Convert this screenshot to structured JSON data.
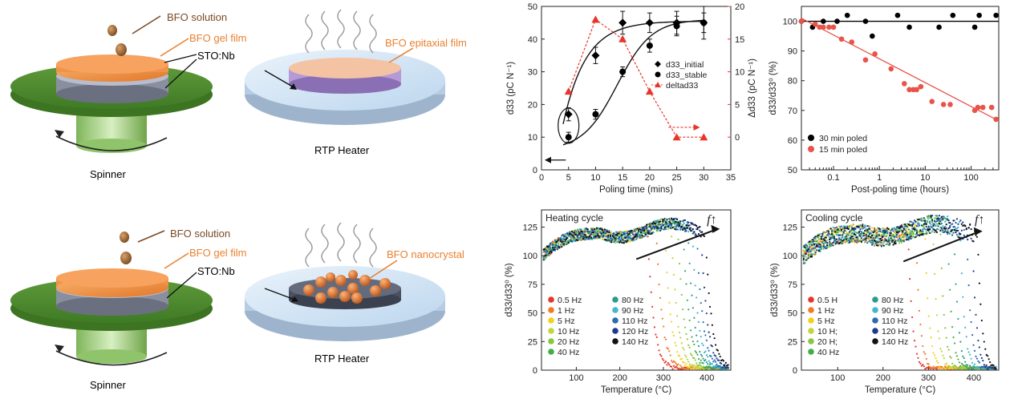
{
  "schematic": {
    "top": {
      "solution_label": "BFO solution",
      "gel_label": "BFO gel film",
      "substrate_label": "STO:Nb",
      "product_label": "BFO epitaxial film",
      "spinner_label": "Spinner",
      "heater_label": "RTP Heater"
    },
    "bottom": {
      "solution_label": "BFO solution",
      "gel_label": "BFO gel film",
      "substrate_label": "STO:Nb",
      "product_label": "BFO nanocrystal",
      "spinner_label": "Spinner",
      "heater_label": "RTP Heater"
    }
  },
  "chart_data": [
    {
      "type": "line",
      "xlabel": "Poling time (mins)",
      "ylabel": "d33 (pC N⁻¹)",
      "ylabel_right": "Δd33 (pC N⁻¹)",
      "xlim": [
        0,
        35
      ],
      "ylim": [
        0,
        50
      ],
      "ylim_right": [
        -5,
        20
      ],
      "xticks": [
        "0",
        "5",
        "10",
        "15",
        "20",
        "25",
        "30",
        "35"
      ],
      "yticks": [
        "0",
        "10",
        "20",
        "30",
        "40",
        "50"
      ],
      "yticks_right": [
        "0",
        "5",
        "10",
        "15",
        "20"
      ],
      "series": [
        {
          "name": "d33_initial",
          "marker": "diamond",
          "color": "#000000",
          "axis": "left",
          "x": [
            5,
            10,
            15,
            20,
            25,
            30
          ],
          "y": [
            17,
            35,
            45,
            45,
            45,
            45
          ],
          "err": [
            2,
            2.5,
            3.5,
            3,
            3.5,
            5
          ]
        },
        {
          "name": "d33_stable",
          "marker": "circle",
          "color": "#000000",
          "axis": "left",
          "x": [
            5,
            10,
            15,
            20,
            25,
            30
          ],
          "y": [
            10,
            17,
            30,
            38,
            44,
            45
          ],
          "err": [
            1.5,
            1.5,
            1.5,
            2,
            3,
            3
          ]
        },
        {
          "name": "deltad33",
          "marker": "triangle",
          "color": "#e8352b",
          "axis": "right",
          "x": [
            5,
            10,
            15,
            20,
            25,
            30
          ],
          "y": [
            7,
            18,
            15,
            7,
            0,
            0
          ]
        }
      ]
    },
    {
      "type": "scatter",
      "xlabel": "Post-poling time (hours)",
      "ylabel": "d33/d33⁰ (%)",
      "xscale": "log",
      "xlim": [
        0.02,
        400
      ],
      "ylim": [
        50,
        105
      ],
      "xticks": [
        "0.1",
        "1",
        "10",
        "100"
      ],
      "yticks": [
        "50",
        "60",
        "70",
        "80",
        "90",
        "100"
      ],
      "legend_position": "bottom-left",
      "series": [
        {
          "name": "30 min poled",
          "color": "#000000",
          "x": [
            0.02,
            0.035,
            0.06,
            0.12,
            0.2,
            0.5,
            0.7,
            2.5,
            4.5,
            20,
            40,
            120,
            150,
            350
          ],
          "y": [
            100,
            98,
            100,
            100,
            102,
            100,
            95,
            102,
            98,
            98,
            102,
            98,
            102,
            102
          ]
        },
        {
          "name": "15 min poled",
          "color": "#e8534a",
          "x": [
            0.02,
            0.04,
            0.05,
            0.06,
            0.08,
            0.1,
            0.15,
            0.25,
            0.5,
            0.8,
            1.8,
            3.5,
            4.5,
            5.5,
            6.5,
            8,
            14,
            25,
            35,
            120,
            140,
            180,
            280,
            350
          ],
          "y": [
            100,
            99,
            98,
            98,
            98,
            98,
            94,
            93,
            87,
            89,
            84,
            79,
            77,
            77,
            77,
            78,
            73,
            72,
            72,
            70,
            71,
            71,
            71,
            67
          ]
        }
      ],
      "fits": [
        {
          "series": "30 min poled",
          "color": "#000000"
        },
        {
          "series": "15 min poled",
          "color": "#e8534a"
        }
      ]
    },
    {
      "type": "scatter",
      "title": "Heating cycle",
      "xlabel": "Temperature (°C)",
      "ylabel": "d33/d33⁰ (%)",
      "xlim": [
        20,
        455
      ],
      "ylim": [
        0,
        140
      ],
      "xticks": [
        "100",
        "200",
        "300",
        "400"
      ],
      "yticks": [
        "0",
        "25",
        "50",
        "75",
        "100",
        "125"
      ],
      "annotation": "f↑",
      "series": [
        {
          "name": "0.5 Hz",
          "color": "#e8352b",
          "drop_T": 263
        },
        {
          "name": "1 Hz",
          "color": "#f07b22",
          "drop_T": 283
        },
        {
          "name": "5 Hz",
          "color": "#f2d21d",
          "drop_T": 303
        },
        {
          "name": "10 Hz",
          "color": "#c4d43a",
          "drop_T": 318
        },
        {
          "name": "20 Hz",
          "color": "#8cc63f",
          "drop_T": 333
        },
        {
          "name": "40 Hz",
          "color": "#3fae49",
          "drop_T": 345
        },
        {
          "name": "80 Hz",
          "color": "#2a9d8f",
          "drop_T": 356
        },
        {
          "name": "90 Hz",
          "color": "#45b7d1",
          "drop_T": 366
        },
        {
          "name": "110 Hz",
          "color": "#2b6cb0",
          "drop_T": 376
        },
        {
          "name": "120 Hz",
          "color": "#1e3a8a",
          "drop_T": 386
        },
        {
          "name": "140 Hz",
          "color": "#111111",
          "drop_T": 396
        }
      ]
    },
    {
      "type": "scatter",
      "title": "Cooling cycle",
      "xlabel": "Temperature (°C)",
      "ylabel": "d33/d33⁰ (%)",
      "xlim": [
        20,
        455
      ],
      "ylim": [
        0,
        140
      ],
      "xticks": [
        "100",
        "200",
        "300",
        "400"
      ],
      "yticks": [
        "0",
        "25",
        "50",
        "75",
        "100",
        "125"
      ],
      "annotation": "f↑",
      "series": [
        {
          "name": "0.5 H",
          "color": "#e8352b",
          "drop_T": 255
        },
        {
          "name": "1 Hz",
          "color": "#f07b22",
          "drop_T": 272
        },
        {
          "name": "5 Hz",
          "color": "#f2d21d",
          "drop_T": 292
        },
        {
          "name": "10 H;",
          "color": "#c4d43a",
          "drop_T": 310
        },
        {
          "name": "20 H;",
          "color": "#8cc63f",
          "drop_T": 326
        },
        {
          "name": "40 Hz",
          "color": "#3fae49",
          "drop_T": 342
        },
        {
          "name": "80 Hz",
          "color": "#2a9d8f",
          "drop_T": 356
        },
        {
          "name": "90 Hz",
          "color": "#45b7d1",
          "drop_T": 370
        },
        {
          "name": "110 Hz",
          "color": "#2b6cb0",
          "drop_T": 384
        },
        {
          "name": "120 Hz",
          "color": "#1e3a8a",
          "drop_T": 396
        },
        {
          "name": "140 Hz",
          "color": "#111111",
          "drop_T": 408
        }
      ]
    }
  ]
}
